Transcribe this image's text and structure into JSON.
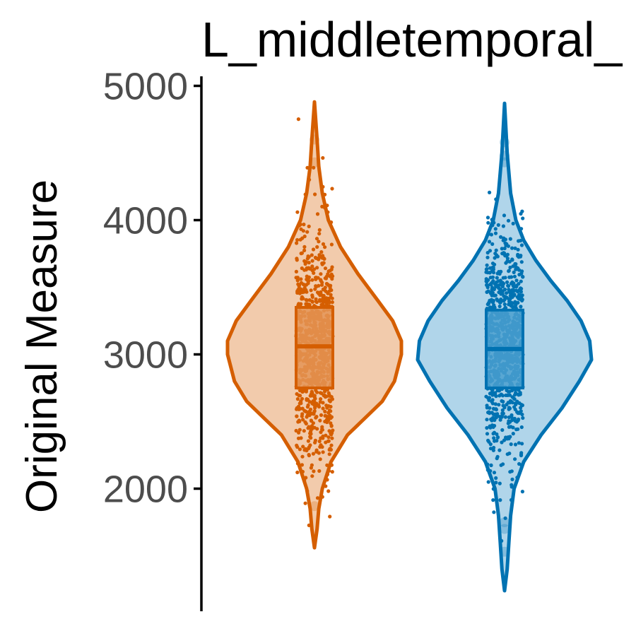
{
  "chart_data": {
    "type": "violin",
    "title": "L_middletemporal_",
    "ylabel": "Original Measure",
    "xlabel": "",
    "ylim": [
      1100,
      5100
    ],
    "y_ticks": [
      2000,
      3000,
      4000,
      5000
    ],
    "y_tick_labels": [
      "2000",
      "3000",
      "4000",
      "5000"
    ],
    "grid": false,
    "legend": "none",
    "groups": [
      {
        "color": "#d55e00",
        "fill": "#f2cbac",
        "box_fill": "#e49455",
        "min": 1560,
        "max": 4880,
        "q1": 2750,
        "median": 3060,
        "q3": 3350,
        "mode": 3070,
        "outliers": [
          4600,
          4430,
          1870
        ],
        "density": [
          [
            1560,
            0.0
          ],
          [
            1700,
            0.03
          ],
          [
            1850,
            0.05
          ],
          [
            2000,
            0.09
          ],
          [
            2200,
            0.19
          ],
          [
            2400,
            0.38
          ],
          [
            2550,
            0.62
          ],
          [
            2650,
            0.78
          ],
          [
            2800,
            0.92
          ],
          [
            3000,
            1.0
          ],
          [
            3100,
            1.0
          ],
          [
            3250,
            0.9
          ],
          [
            3400,
            0.73
          ],
          [
            3600,
            0.5
          ],
          [
            3800,
            0.3
          ],
          [
            4000,
            0.16
          ],
          [
            4200,
            0.09
          ],
          [
            4400,
            0.05
          ],
          [
            4600,
            0.03
          ],
          [
            4880,
            0.0
          ]
        ]
      },
      {
        "color": "#0072b2",
        "fill": "#b0d5ea",
        "box_fill": "#4a9fcf",
        "min": 1240,
        "max": 4870,
        "q1": 2750,
        "median": 3040,
        "q3": 3330,
        "mode": 2960,
        "outliers": [
          4580,
          4480,
          4430,
          1750,
          1700,
          1530
        ],
        "density": [
          [
            1240,
            0.0
          ],
          [
            1400,
            0.03
          ],
          [
            1600,
            0.05
          ],
          [
            1800,
            0.07
          ],
          [
            2000,
            0.11
          ],
          [
            2200,
            0.22
          ],
          [
            2400,
            0.42
          ],
          [
            2600,
            0.66
          ],
          [
            2800,
            0.86
          ],
          [
            2960,
            1.0
          ],
          [
            3100,
            0.98
          ],
          [
            3250,
            0.88
          ],
          [
            3400,
            0.72
          ],
          [
            3550,
            0.53
          ],
          [
            3700,
            0.36
          ],
          [
            3850,
            0.22
          ],
          [
            4000,
            0.13
          ],
          [
            4200,
            0.07
          ],
          [
            4500,
            0.03
          ],
          [
            4870,
            0.0
          ]
        ]
      }
    ]
  }
}
